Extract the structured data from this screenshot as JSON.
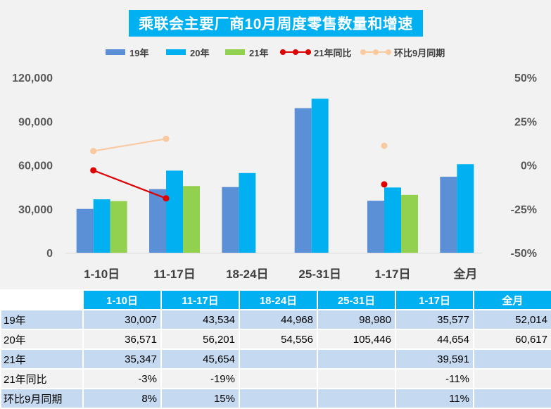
{
  "chart_data": {
    "type": "bar",
    "title": "乘联会主要厂商10月周度零售数量和增速",
    "categories": [
      "1-10日",
      "11-17日",
      "18-24日",
      "25-31日",
      "1-17日",
      "全月"
    ],
    "series": [
      {
        "name": "19年",
        "type": "bar",
        "axis": "left",
        "color": "#5b8fd6",
        "values": [
          30007,
          43534,
          44968,
          98980,
          35577,
          52014
        ]
      },
      {
        "name": "20年",
        "type": "bar",
        "axis": "left",
        "color": "#00b0f0",
        "values": [
          36571,
          56201,
          54556,
          105446,
          44654,
          60617
        ]
      },
      {
        "name": "21年",
        "type": "bar",
        "axis": "left",
        "color": "#92d050",
        "values": [
          35347,
          45654,
          null,
          null,
          39591,
          null
        ]
      },
      {
        "name": "21年同比",
        "type": "line",
        "axis": "right",
        "color": "#e00000",
        "values": [
          -0.03,
          -0.19,
          null,
          null,
          -0.11,
          null
        ]
      },
      {
        "name": "环比9月同期",
        "type": "line",
        "axis": "right",
        "color": "#f9c9a0",
        "values": [
          0.08,
          0.15,
          null,
          null,
          0.11,
          null
        ]
      }
    ],
    "y_left": {
      "min": 0,
      "max": 120000,
      "ticks": [
        0,
        30000,
        60000,
        90000,
        120000
      ],
      "tick_labels": [
        "0",
        "30,000",
        "60,000",
        "90,000",
        "120,000"
      ]
    },
    "y_right": {
      "min": -0.5,
      "max": 0.5,
      "ticks": [
        -0.5,
        -0.25,
        0,
        0.25,
        0.5
      ],
      "tick_labels": [
        "-50%",
        "-25%",
        "0%",
        "25%",
        "50%"
      ]
    },
    "legend_position": "top",
    "grid": false
  },
  "table": {
    "header": [
      "1-10日",
      "11-17日",
      "18-24日",
      "25-31日",
      "1-17日",
      "全月"
    ],
    "rows": [
      {
        "label": "19年",
        "cells": [
          "30,007",
          "43,534",
          "44,968",
          "98,980",
          "35,577",
          "52,014"
        ]
      },
      {
        "label": "20年",
        "cells": [
          "36,571",
          "56,201",
          "54,556",
          "105,446",
          "44,654",
          "60,617"
        ]
      },
      {
        "label": "21年",
        "cells": [
          "35,347",
          "45,654",
          "",
          "",
          "39,591",
          ""
        ]
      },
      {
        "label": "21年同比",
        "cells": [
          "-3%",
          "-19%",
          "",
          "",
          "-11%",
          ""
        ]
      },
      {
        "label": "环比9月同期",
        "cells": [
          "8%",
          "15%",
          "",
          "",
          "11%",
          ""
        ]
      }
    ]
  }
}
